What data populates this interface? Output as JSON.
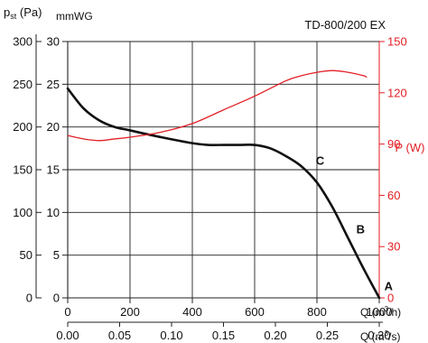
{
  "chart_data": {
    "type": "line",
    "title": "TD-800/200 EX",
    "colors": {
      "pressure_curve": "#111111",
      "power_curve": "#e31e24",
      "grid": "#222222"
    },
    "axes": {
      "x_flow_m3h": {
        "label": "Q (m³/h)",
        "range": [
          0,
          1000
        ],
        "ticks": [
          "0",
          "200",
          "400",
          "600",
          "800",
          "1000"
        ]
      },
      "x_flow_m3s": {
        "label": "Q (m³/s)",
        "range": [
          0,
          0.3
        ],
        "ticks": [
          "0.00",
          "0.05",
          "0.10",
          "0.15",
          "0.20",
          "0.25",
          "0.30"
        ]
      },
      "y_pressure_pa": {
        "label_main": "p",
        "label_sub": "st",
        "label_unit": " (Pa)",
        "range": [
          0,
          300
        ],
        "ticks": [
          "0",
          "50",
          "100",
          "150",
          "200",
          "250",
          "300"
        ]
      },
      "y_pressure_mmwg": {
        "label": "mmWG",
        "range": [
          0,
          30
        ],
        "ticks": [
          "0",
          "5",
          "10",
          "15",
          "20",
          "25",
          "30"
        ]
      },
      "y_power_w": {
        "label": "P (W)",
        "range": [
          0,
          150
        ],
        "ticks": [
          "0",
          "30",
          "60",
          "90",
          "120",
          "150"
        ]
      }
    },
    "grid": true,
    "series": [
      {
        "axis": "pressure_mmwg",
        "x": [
          0,
          50,
          100,
          150,
          200,
          300,
          400,
          450,
          500,
          550,
          600,
          650,
          700,
          750,
          800,
          850,
          900,
          950,
          1000
        ],
        "y": [
          24.5,
          22.2,
          20.8,
          20.0,
          19.6,
          18.8,
          18.1,
          17.9,
          17.9,
          17.9,
          17.9,
          17.5,
          16.6,
          15.4,
          13.5,
          10.6,
          7.0,
          3.4,
          0.0
        ]
      },
      {
        "axis": "power_w",
        "x": [
          0,
          50,
          100,
          150,
          200,
          300,
          400,
          500,
          600,
          700,
          750,
          800,
          850,
          900,
          950,
          960
        ],
        "y": [
          95,
          93,
          92,
          93,
          94,
          97,
          102,
          110,
          118,
          127,
          130,
          132,
          133,
          132,
          130,
          129
        ]
      }
    ],
    "annotations": [
      {
        "text": "A",
        "x": 1030,
        "y": 1.3
      },
      {
        "text": "B",
        "x": 940,
        "y": 8.0
      },
      {
        "text": "C",
        "x": 810,
        "y": 16.0
      }
    ]
  }
}
